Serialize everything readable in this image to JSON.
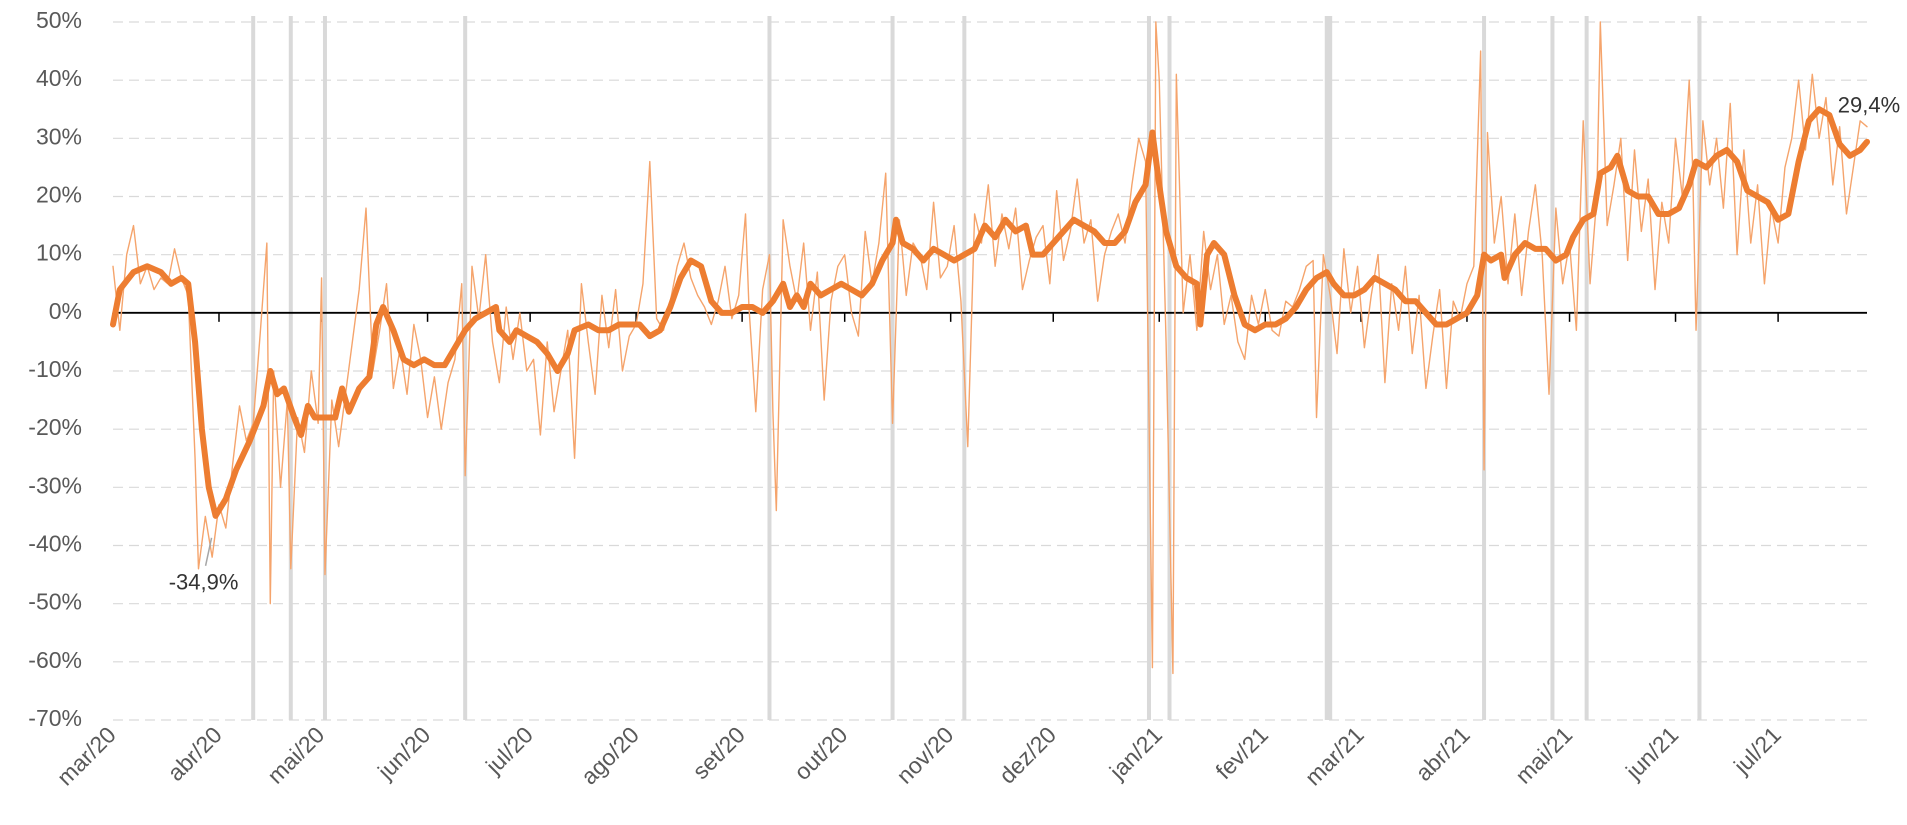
{
  "chart_data": {
    "type": "line",
    "xlim": [
      0,
      513
    ],
    "ylim": [
      -70,
      50
    ],
    "xticks": [
      {
        "value": 0,
        "label": "mar/20"
      },
      {
        "value": 31,
        "label": "abr/20"
      },
      {
        "value": 61,
        "label": "mai/20"
      },
      {
        "value": 92,
        "label": "jun/20"
      },
      {
        "value": 122,
        "label": "jul/20"
      },
      {
        "value": 153,
        "label": "ago/20"
      },
      {
        "value": 184,
        "label": "set/20"
      },
      {
        "value": 214,
        "label": "out/20"
      },
      {
        "value": 245,
        "label": "nov/20"
      },
      {
        "value": 275,
        "label": "dez/20"
      },
      {
        "value": 306,
        "label": "jan/21"
      },
      {
        "value": 337,
        "label": "fev/21"
      },
      {
        "value": 365,
        "label": "mar/21"
      },
      {
        "value": 396,
        "label": "abr/21"
      },
      {
        "value": 426,
        "label": "mai/21"
      },
      {
        "value": 457,
        "label": "jun/21"
      },
      {
        "value": 487,
        "label": "jul/21"
      }
    ],
    "yticks": [
      {
        "value": 50,
        "label": "50%"
      },
      {
        "value": 40,
        "label": "40%"
      },
      {
        "value": 30,
        "label": "30%"
      },
      {
        "value": 20,
        "label": "20%"
      },
      {
        "value": 10,
        "label": "10%"
      },
      {
        "value": 0,
        "label": "0%"
      },
      {
        "value": -10,
        "label": "-10%"
      },
      {
        "value": -20,
        "label": "-20%"
      },
      {
        "value": -30,
        "label": "-30%"
      },
      {
        "value": -40,
        "label": "-40%"
      },
      {
        "value": -50,
        "label": "-50%"
      },
      {
        "value": -60,
        "label": "-60%"
      },
      {
        "value": -70,
        "label": "-70%"
      }
    ],
    "grid": true,
    "highlights": [
      41,
      52,
      62,
      103,
      192,
      228,
      249,
      303,
      309,
      355,
      356,
      401,
      421,
      431,
      464
    ],
    "highlight_color": "#d9d9d9",
    "series": [
      {
        "color": "#f5a46c",
        "width": 1.4,
        "x": [
          0,
          2,
          4,
          6,
          8,
          10,
          12,
          14,
          16,
          18,
          20,
          22,
          24,
          25,
          27,
          29,
          31,
          33,
          35,
          37,
          39,
          41,
          43,
          45,
          46,
          47,
          49,
          51,
          52,
          54,
          56,
          58,
          60,
          61,
          62,
          64,
          66,
          68,
          70,
          72,
          74,
          76,
          78,
          80,
          82,
          84,
          86,
          88,
          90,
          92,
          94,
          96,
          98,
          100,
          102,
          103,
          105,
          107,
          109,
          111,
          113,
          115,
          117,
          119,
          121,
          123,
          125,
          127,
          129,
          131,
          133,
          135,
          137,
          139,
          141,
          143,
          145,
          147,
          149,
          151,
          153,
          155,
          157,
          159,
          161,
          163,
          165,
          167,
          169,
          171,
          173,
          175,
          177,
          179,
          181,
          183,
          185,
          186,
          188,
          190,
          192,
          193,
          194,
          196,
          198,
          200,
          202,
          204,
          206,
          208,
          210,
          212,
          214,
          216,
          218,
          220,
          222,
          224,
          226,
          228,
          230,
          232,
          234,
          236,
          238,
          240,
          242,
          244,
          246,
          248,
          250,
          252,
          254,
          256,
          258,
          260,
          262,
          264,
          266,
          268,
          270,
          272,
          274,
          276,
          278,
          280,
          282,
          284,
          286,
          288,
          290,
          292,
          294,
          296,
          298,
          300,
          302,
          304,
          305,
          306,
          308,
          310,
          311,
          313,
          315,
          317,
          319,
          321,
          323,
          325,
          327,
          329,
          331,
          333,
          335,
          337,
          339,
          341,
          343,
          345,
          347,
          349,
          351,
          352,
          354,
          356,
          358,
          360,
          362,
          364,
          366,
          368,
          370,
          372,
          374,
          376,
          378,
          380,
          382,
          384,
          386,
          388,
          390,
          392,
          394,
          396,
          398,
          400,
          401,
          402,
          404,
          406,
          408,
          410,
          412,
          414,
          416,
          418,
          420,
          422,
          424,
          426,
          428,
          430,
          432,
          434,
          435,
          437,
          439,
          441,
          443,
          445,
          447,
          449,
          451,
          453,
          455,
          457,
          459,
          461,
          462,
          463,
          465,
          467,
          469,
          471,
          473,
          475,
          477,
          479,
          481,
          483,
          485,
          487,
          489,
          491,
          493,
          495,
          497,
          499,
          501,
          503,
          505,
          507,
          509,
          511,
          513
        ],
        "values": [
          8,
          -3,
          10,
          15,
          5,
          8,
          4,
          6,
          5,
          11,
          6,
          3,
          -25,
          -44,
          -35,
          -42,
          -33,
          -37,
          -26,
          -16,
          -22,
          -19,
          -4,
          12,
          -50,
          -10,
          -30,
          -15,
          -44,
          -18,
          -24,
          -10,
          -19,
          6,
          -45,
          -15,
          -23,
          -14,
          -5,
          4,
          18,
          -10,
          -3,
          5,
          -13,
          -6,
          -14,
          -2,
          -8,
          -18,
          -11,
          -20,
          -12,
          -8,
          5,
          -28,
          8,
          -1,
          10,
          -5,
          -12,
          1,
          -8,
          0,
          -10,
          -8,
          -21,
          -5,
          -17,
          -10,
          -3,
          -25,
          5,
          -5,
          -14,
          3,
          -6,
          4,
          -10,
          -4,
          -2,
          5,
          26,
          -1,
          -3,
          2,
          8,
          12,
          6,
          3,
          1,
          -2,
          2,
          8,
          -1,
          3,
          17,
          1,
          -17,
          4,
          10,
          -17,
          -34,
          16,
          8,
          2,
          12,
          -3,
          7,
          -15,
          2,
          8,
          10,
          0,
          -4,
          14,
          5,
          12,
          24,
          -19,
          16,
          3,
          12,
          10,
          4,
          19,
          6,
          8,
          15,
          2,
          -23,
          17,
          12,
          22,
          8,
          17,
          11,
          18,
          4,
          9,
          13,
          15,
          5,
          21,
          9,
          14,
          23,
          12,
          16,
          2,
          10,
          14,
          17,
          12,
          22,
          30,
          26,
          -61,
          50,
          40,
          -5,
          -62,
          41,
          0,
          10,
          -3,
          14,
          4,
          10,
          -2,
          3,
          -5,
          -8,
          3,
          -2,
          4,
          -3,
          -4,
          2,
          1,
          4,
          8,
          9,
          -18,
          10,
          3,
          -7,
          11,
          0,
          8,
          -6,
          3,
          10,
          -12,
          5,
          -3,
          8,
          -7,
          3,
          -13,
          -4,
          4,
          -13,
          2,
          -1,
          5,
          8,
          45,
          -27,
          31,
          12,
          20,
          5,
          17,
          3,
          14,
          22,
          10,
          -14,
          18,
          5,
          12,
          -3,
          33,
          5,
          20,
          50,
          15,
          22,
          30,
          9,
          28,
          14,
          23,
          4,
          19,
          12,
          30,
          20,
          40,
          25,
          -3,
          33,
          22,
          30,
          18,
          36,
          10,
          28,
          12,
          22,
          5,
          18,
          12,
          25,
          30,
          40,
          28,
          41,
          30,
          37,
          22,
          32,
          17,
          25,
          33,
          32
        ]
      },
      {
        "color": "#ed7d31",
        "width": 6,
        "x": [
          0,
          2,
          6,
          10,
          14,
          17,
          20,
          22,
          24,
          26,
          28,
          30,
          33,
          36,
          40,
          44,
          46,
          48,
          50,
          53,
          55,
          57,
          59,
          62,
          65,
          67,
          69,
          72,
          75,
          77,
          79,
          82,
          85,
          88,
          91,
          94,
          97,
          100,
          103,
          106,
          109,
          112,
          113,
          116,
          118,
          121,
          124,
          127,
          130,
          133,
          135,
          139,
          142,
          145,
          148,
          151,
          154,
          157,
          160,
          163,
          166,
          169,
          172,
          175,
          178,
          181,
          184,
          187,
          190,
          193,
          196,
          198,
          200,
          202,
          204,
          207,
          210,
          213,
          216,
          219,
          222,
          225,
          228,
          229,
          231,
          234,
          237,
          240,
          243,
          246,
          249,
          252,
          255,
          258,
          261,
          264,
          267,
          269,
          272,
          275,
          278,
          281,
          284,
          287,
          290,
          293,
          296,
          299,
          302,
          304,
          306,
          308,
          311,
          314,
          317,
          318,
          320,
          322,
          325,
          328,
          331,
          334,
          337,
          340,
          343,
          346,
          349,
          352,
          355,
          357,
          360,
          363,
          366,
          369,
          372,
          375,
          378,
          381,
          384,
          387,
          390,
          393,
          396,
          399,
          401,
          403,
          406,
          407,
          410,
          413,
          416,
          419,
          422,
          425,
          427,
          430,
          433,
          435,
          438,
          440,
          443,
          446,
          449,
          452,
          455,
          458,
          461,
          463,
          466,
          469,
          472,
          475,
          478,
          481,
          484,
          487,
          490,
          493,
          496,
          499,
          502,
          505,
          508,
          511,
          513
        ],
        "values": [
          -2,
          4,
          7,
          8,
          7,
          5,
          6,
          5,
          -5,
          -20,
          -30,
          -34.9,
          -32,
          -27,
          -22,
          -16,
          -10,
          -14,
          -13,
          -18,
          -21,
          -16,
          -18,
          -18,
          -18,
          -13,
          -17,
          -13,
          -11,
          -2,
          1,
          -3,
          -8,
          -9,
          -8,
          -9,
          -9,
          -6,
          -3,
          -1,
          0,
          1,
          -3,
          -5,
          -3,
          -4,
          -5,
          -7,
          -10,
          -7,
          -3,
          -2,
          -3,
          -3,
          -2,
          -2,
          -2,
          -4,
          -3,
          1,
          6,
          9,
          8,
          2,
          0,
          0,
          1,
          1,
          0,
          2,
          5,
          1,
          3,
          1,
          5,
          3,
          4,
          5,
          4,
          3,
          5,
          9,
          12,
          16,
          12,
          11,
          9,
          11,
          10,
          9,
          10,
          11,
          15,
          13,
          16,
          14,
          15,
          10,
          10,
          12,
          14,
          16,
          15,
          14,
          12,
          12,
          14,
          19,
          22,
          31,
          22,
          14,
          8,
          6,
          5,
          -2,
          10,
          12,
          10,
          3,
          -2,
          -3,
          -2,
          -2,
          -1,
          1,
          4,
          6,
          7,
          5,
          3,
          3,
          4,
          6,
          5,
          4,
          2,
          2,
          0,
          -2,
          -2,
          -1,
          0,
          3,
          10,
          9,
          10,
          6,
          10,
          12,
          11,
          11,
          9,
          10,
          13,
          16,
          17,
          24,
          25,
          27,
          21,
          20,
          20,
          17,
          17,
          18,
          22,
          26,
          25,
          27,
          28,
          26,
          21,
          20,
          19,
          16,
          17,
          26,
          33,
          35,
          34,
          29,
          27,
          28,
          29.4
        ]
      }
    ],
    "annotations": [
      {
        "label": "-34,9%",
        "x": 30,
        "value": -34.9,
        "position": "below"
      },
      {
        "label": "29,4%",
        "x": 513,
        "value": 29.4,
        "position": "above"
      }
    ]
  }
}
